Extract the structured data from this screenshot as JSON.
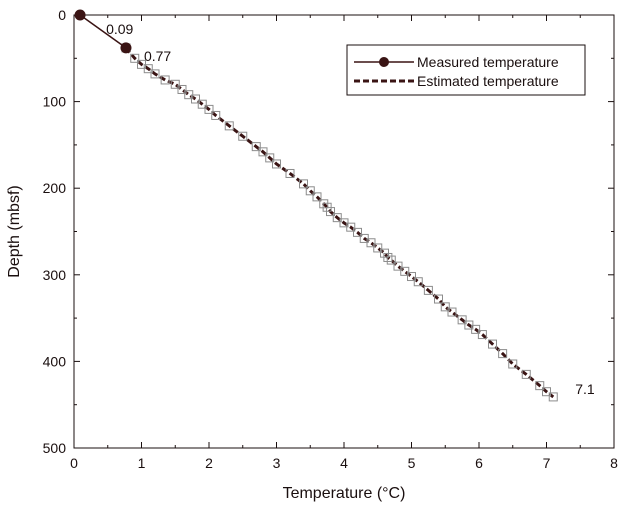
{
  "chart_data": {
    "type": "scatter",
    "xlabel": "Temperature (°C)",
    "ylabel": "Depth (mbsf)",
    "xlim": [
      0,
      8
    ],
    "ylim": [
      0,
      500
    ],
    "y_inverted": true,
    "x_ticks": [
      "0",
      "1",
      "2",
      "3",
      "4",
      "5",
      "6",
      "7",
      "8"
    ],
    "y_ticks": [
      "0",
      "100",
      "200",
      "300",
      "400",
      "500"
    ],
    "grid": false,
    "legend_position": "top-right",
    "colors": {
      "line": "#3a1414",
      "marker_edge": "#8c8c8c"
    },
    "series": [
      {
        "name": "Measured temperature",
        "style": "solid-line-filled-circles",
        "x": [
          0.09,
          0.77
        ],
        "y": [
          0,
          38
        ]
      },
      {
        "name": "Estimated temperature",
        "style": "dashed-line-open-squares",
        "x": [
          0.77,
          0.9,
          1.0,
          1.1,
          1.2,
          1.35,
          1.5,
          1.6,
          1.7,
          1.8,
          1.9,
          2.0,
          2.1,
          2.3,
          2.5,
          2.7,
          2.8,
          2.9,
          3.0,
          3.2,
          3.4,
          3.5,
          3.6,
          3.7,
          3.75,
          3.8,
          3.9,
          4.0,
          4.1,
          4.2,
          4.3,
          4.4,
          4.5,
          4.6,
          4.65,
          4.7,
          4.8,
          4.9,
          5.0,
          5.1,
          5.25,
          5.4,
          5.5,
          5.6,
          5.75,
          5.85,
          5.95,
          6.05,
          6.2,
          6.35,
          6.5,
          6.7,
          6.9,
          7.0,
          7.1
        ],
        "y": [
          38,
          50,
          57,
          62,
          68,
          75,
          80,
          86,
          92,
          97,
          103,
          109,
          116,
          128,
          140,
          152,
          158,
          165,
          172,
          183,
          195,
          203,
          210,
          218,
          222,
          227,
          234,
          240,
          245,
          251,
          258,
          263,
          269,
          275,
          280,
          283,
          290,
          296,
          302,
          308,
          318,
          328,
          337,
          343,
          352,
          358,
          363,
          369,
          380,
          391,
          403,
          415,
          428,
          435,
          441
        ]
      }
    ],
    "annotations": [
      {
        "text": "0.09",
        "x": 0.09,
        "y": 0
      },
      {
        "text": "0.77",
        "x": 0.77,
        "y": 38
      },
      {
        "text": "7.1",
        "x": 7.1,
        "y": 441
      }
    ]
  }
}
